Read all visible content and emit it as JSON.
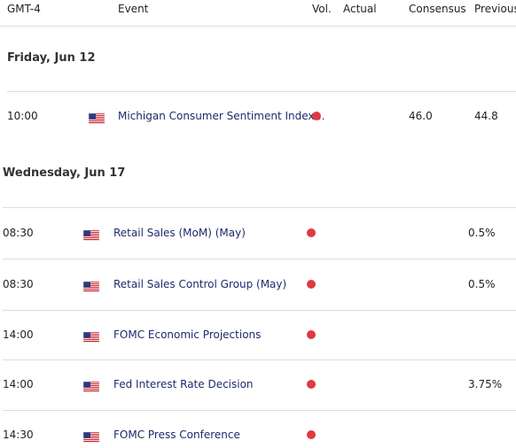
{
  "header": {
    "columns": [
      "GMT-4",
      "Event",
      "Vol.",
      "Actual",
      "Consensus",
      "Previous"
    ]
  },
  "sections": [
    {
      "date": "Friday, Jun 12",
      "rows": [
        {
          "time": "10:00",
          "event": "Michigan Consumer Sentiment Index…",
          "consensus": "46.0",
          "previous": "44.8"
        }
      ]
    },
    {
      "date": "Wednesday, Jun 17",
      "rows": [
        {
          "time": "08:30",
          "event": "Retail Sales (MoM) (May)",
          "previous": "0.5%"
        },
        {
          "time": "08:30",
          "event": "Retail Sales Control Group (May)",
          "previous": "0.5%"
        },
        {
          "time": "14:00",
          "event": "FOMC Economic Projections"
        },
        {
          "time": "14:00",
          "event": "Fed Interest Rate Decision",
          "previous": "3.75%"
        },
        {
          "time": "14:30",
          "event": "FOMC Press Conference"
        }
      ]
    }
  ]
}
